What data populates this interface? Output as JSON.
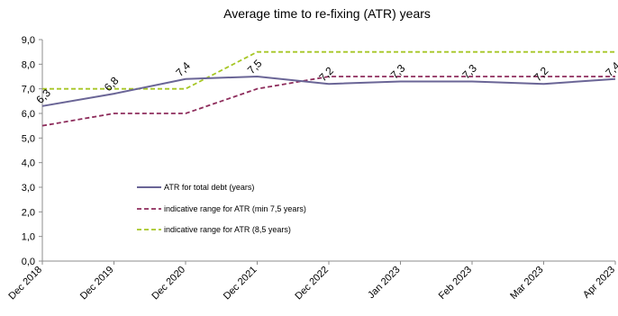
{
  "chart_data": {
    "type": "line",
    "title": "Average time to re-fixing (ATR) years",
    "xlabel": "",
    "ylabel": "",
    "categories": [
      "Dec 2018",
      "Dec 2019",
      "Dec 2020",
      "Dec 2021",
      "Dec 2022",
      "Jan 2023",
      "Feb 2023",
      "Mar 2023",
      "Apr 2023"
    ],
    "ylim": [
      0,
      9
    ],
    "yticks": [
      "0,0",
      "1,0",
      "2,0",
      "3,0",
      "4,0",
      "5,0",
      "6,0",
      "7,0",
      "8,0",
      "9,0"
    ],
    "grid": false,
    "legend_position": "center-left",
    "series": [
      {
        "name": "ATR for total debt (years)",
        "values": [
          6.3,
          6.8,
          7.4,
          7.5,
          7.2,
          7.3,
          7.3,
          7.2,
          7.4
        ],
        "labels": [
          "6,3",
          "6,8",
          "7,4",
          "7,5",
          "7,2",
          "7,3",
          "7,3",
          "7,2",
          "7,4"
        ],
        "color": "#6a6596",
        "style": "solid"
      },
      {
        "name": "indicative range for ATR (min 7,5 years)",
        "values": [
          5.5,
          6.0,
          6.0,
          7.0,
          7.5,
          7.5,
          7.5,
          7.5,
          7.5
        ],
        "color": "#8e2d5c",
        "style": "dashed"
      },
      {
        "name": "indicative range for ATR (8,5 years)",
        "values": [
          7.0,
          7.0,
          7.0,
          8.5,
          8.5,
          8.5,
          8.5,
          8.5,
          8.5
        ],
        "color": "#a6c625",
        "style": "dashed"
      }
    ]
  }
}
